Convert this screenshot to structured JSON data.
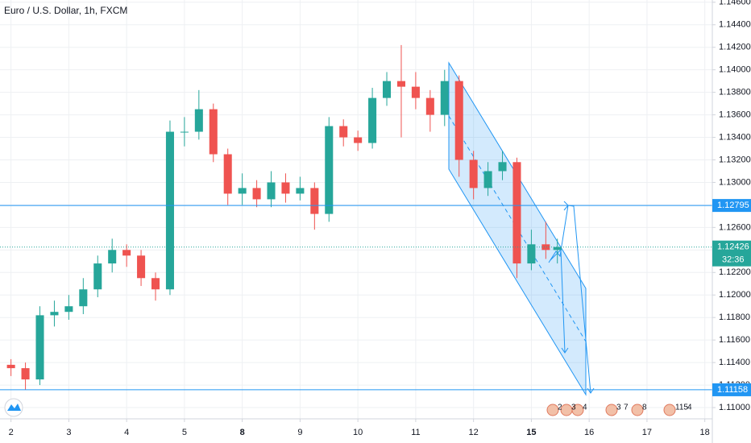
{
  "chart_data": {
    "type": "candlestick",
    "title": "Euro / U.S. Dollar, 1h, FXCM",
    "x": [
      0,
      0.25,
      0.5,
      0.75,
      1,
      1.25,
      1.5,
      1.75,
      2,
      2.25,
      2.5,
      2.75,
      3,
      3.25,
      3.5,
      3.75,
      4,
      4.25,
      4.5,
      4.75,
      5,
      5.25,
      5.5,
      5.75,
      6,
      6.25,
      6.5,
      6.75,
      7,
      7.25,
      7.5,
      7.75,
      8,
      8.25,
      8.5,
      8.75,
      9,
      9.25,
      9.45
    ],
    "open": [
      1.1138,
      1.1135,
      1.1125,
      1.1182,
      1.1185,
      1.119,
      1.1205,
      1.1228,
      1.124,
      1.1235,
      1.1215,
      1.1205,
      1.1345,
      1.1345,
      1.1365,
      1.1325,
      1.129,
      1.1295,
      1.1285,
      1.13,
      1.129,
      1.1295,
      1.1272,
      1.135,
      1.134,
      1.1335,
      1.1375,
      1.139,
      1.1385,
      1.1375,
      1.136,
      1.139,
      1.132,
      1.1295,
      1.131,
      1.1318,
      1.1228,
      1.1245,
      1.124
    ],
    "high": [
      1.1143,
      1.114,
      1.119,
      1.1195,
      1.12,
      1.1215,
      1.1235,
      1.125,
      1.1245,
      1.124,
      1.122,
      1.1355,
      1.1358,
      1.1382,
      1.137,
      1.133,
      1.1308,
      1.1302,
      1.131,
      1.1308,
      1.1305,
      1.13,
      1.1358,
      1.1356,
      1.1346,
      1.1384,
      1.1398,
      1.1422,
      1.1398,
      1.1382,
      1.14,
      1.1395,
      1.1328,
      1.1318,
      1.1328,
      1.1322,
      1.1258,
      1.1265,
      1.125
    ],
    "low": [
      1.1128,
      1.1116,
      1.112,
      1.1172,
      1.1178,
      1.1183,
      1.1198,
      1.122,
      1.1225,
      1.1208,
      1.1195,
      1.12,
      1.1332,
      1.1338,
      1.1318,
      1.128,
      1.128,
      1.1278,
      1.1278,
      1.1282,
      1.1284,
      1.1258,
      1.1265,
      1.1332,
      1.1328,
      1.133,
      1.1368,
      1.134,
      1.1365,
      1.1345,
      1.135,
      1.1305,
      1.1285,
      1.1288,
      1.1302,
      1.1215,
      1.1222,
      1.1232,
      1.1228
    ],
    "close": [
      1.1135,
      1.1125,
      1.1182,
      1.1185,
      1.119,
      1.1205,
      1.1228,
      1.124,
      1.1235,
      1.1215,
      1.1205,
      1.1345,
      1.1345,
      1.1365,
      1.1325,
      1.129,
      1.1295,
      1.1285,
      1.13,
      1.129,
      1.1295,
      1.1272,
      1.135,
      1.134,
      1.1335,
      1.1375,
      1.139,
      1.1385,
      1.1375,
      1.136,
      1.139,
      1.132,
      1.1295,
      1.131,
      1.1318,
      1.1228,
      1.1245,
      1.124,
      1.12426
    ],
    "up_color": "#26a69a",
    "down_color": "#ef5350",
    "xlim": [
      -0.19,
      12.13
    ],
    "ylim": [
      1.109,
      1.1462
    ],
    "xticks": [
      {
        "value": 0,
        "label": "2"
      },
      {
        "value": 1,
        "label": "3"
      },
      {
        "value": 2,
        "label": "4"
      },
      {
        "value": 3,
        "label": "5"
      },
      {
        "value": 4,
        "label": "8",
        "bold": true
      },
      {
        "value": 5,
        "label": "9"
      },
      {
        "value": 6,
        "label": "10"
      },
      {
        "value": 7,
        "label": "11"
      },
      {
        "value": 8,
        "label": "12"
      },
      {
        "value": 9,
        "label": "15",
        "bold": true
      },
      {
        "value": 10,
        "label": "16"
      },
      {
        "value": 11,
        "label": "17"
      },
      {
        "value": 12,
        "label": "18"
      }
    ],
    "yticks": [
      {
        "value": 1.146,
        "label": "1.14600"
      },
      {
        "value": 1.144,
        "label": "1.14400"
      },
      {
        "value": 1.142,
        "label": "1.14200"
      },
      {
        "value": 1.14,
        "label": "1.14000"
      },
      {
        "value": 1.138,
        "label": "1.13800"
      },
      {
        "value": 1.136,
        "label": "1.13600"
      },
      {
        "value": 1.134,
        "label": "1.13400"
      },
      {
        "value": 1.132,
        "label": "1.13200"
      },
      {
        "value": 1.13,
        "label": "1.13000"
      },
      {
        "value": 1.128,
        "label": "1.12800"
      },
      {
        "value": 1.126,
        "label": "1.12600"
      },
      {
        "value": 1.124,
        "label": "1.12400"
      },
      {
        "value": 1.122,
        "label": "1.12200"
      },
      {
        "value": 1.12,
        "label": "1.12000"
      },
      {
        "value": 1.118,
        "label": "1.11800"
      },
      {
        "value": 1.116,
        "label": "1.11600"
      },
      {
        "value": 1.114,
        "label": "1.11400"
      },
      {
        "value": 1.112,
        "label": "1.11200"
      },
      {
        "value": 1.11,
        "label": "1.11000"
      }
    ],
    "grid": true,
    "hlines": [
      {
        "value": 1.12795,
        "label": "1.12795",
        "color": "#2196f3"
      },
      {
        "value": 1.11158,
        "label": "1.11158",
        "color": "#2196f3"
      }
    ],
    "last_price": {
      "value": 1.12426,
      "label": "1.12426",
      "countdown": "32:36",
      "color": "#26a69a"
    },
    "events": [
      "2",
      "3",
      "4",
      "3",
      "7",
      "8",
      "115",
      "4"
    ]
  }
}
